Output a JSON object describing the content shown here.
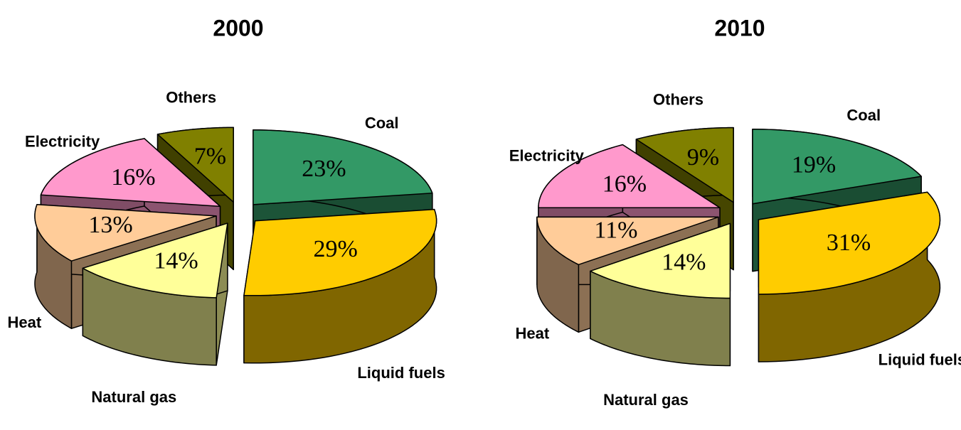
{
  "chart_data": [
    {
      "type": "pie",
      "title": "2000",
      "categories": [
        "Coal",
        "Liquid fuels",
        "Natural gas",
        "Heat",
        "Electricity",
        "Others"
      ],
      "values": [
        23,
        29,
        14,
        13,
        16,
        7
      ],
      "value_labels": [
        "23%",
        "29%",
        "14%",
        "13%",
        "16%",
        "7%"
      ],
      "colors": [
        "#339966",
        "#ffcc00",
        "#ffff99",
        "#ffcc99",
        "#ff99cc",
        "#808000"
      ]
    },
    {
      "type": "pie",
      "title": "2010",
      "categories": [
        "Coal",
        "Liquid fuels",
        "Natural gas",
        "Heat",
        "Electricity",
        "Others"
      ],
      "values": [
        19,
        31,
        14,
        11,
        16,
        9
      ],
      "value_labels": [
        "19%",
        "31%",
        "14%",
        "11%",
        "16%",
        "9%"
      ],
      "colors": [
        "#339966",
        "#ffcc00",
        "#ffff99",
        "#ffcc99",
        "#ff99cc",
        "#808000"
      ]
    }
  ]
}
